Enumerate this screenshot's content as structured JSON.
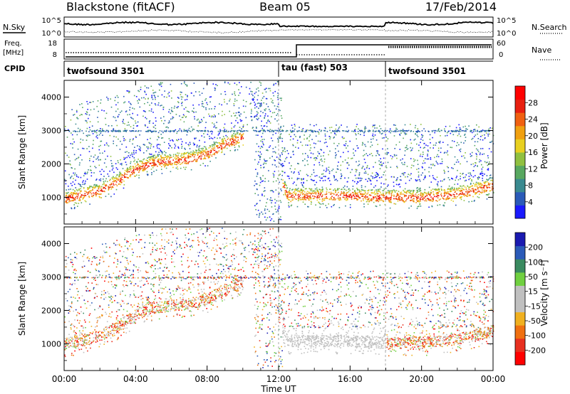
{
  "header": {
    "radar": "Blackstone (fitACF)",
    "beam": "Beam 05",
    "date": "17/Feb/2014"
  },
  "panels": {
    "nsky": {
      "left_label": "N.Sky",
      "right_label": "N.Search",
      "left_ticks": [
        "10^5",
        "10^0"
      ],
      "right_ticks": [
        "10^5",
        "10^0"
      ]
    },
    "freq": {
      "left_label_line1": "Freq.",
      "left_label_line2": "[MHz]",
      "right_label": "Nave",
      "left_ticks": [
        "18",
        "8"
      ],
      "right_ticks": [
        "60",
        "0"
      ]
    },
    "cpid": {
      "label": "CPID",
      "segments": [
        {
          "name": "twofsound 3501",
          "start_h": 0,
          "end_h": 12
        },
        {
          "name": "tau (fast) 503",
          "start_h": 12,
          "end_h": 18
        },
        {
          "name": "twofsound 3501",
          "start_h": 18,
          "end_h": 24
        }
      ]
    }
  },
  "chart_data": [
    {
      "type": "heatmap",
      "name": "power",
      "ylabel": "Slant Range [km]",
      "xlim": [
        0,
        24
      ],
      "ylim": [
        200,
        4500
      ],
      "yticks": [
        "1000",
        "2000",
        "3000",
        "4000"
      ],
      "yticks_values": [
        1000,
        2000,
        3000,
        4000
      ],
      "colorbar": {
        "label": "Power [dB]",
        "ticks": [
          "4",
          "8",
          "12",
          "16",
          "20",
          "24",
          "28"
        ],
        "ticks_values": [
          4,
          8,
          12,
          16,
          20,
          24,
          28
        ],
        "range": [
          0,
          32
        ],
        "colors": [
          "#1a1aff",
          "#2a5ab8",
          "#3a8a90",
          "#58a860",
          "#90c040",
          "#e8d020",
          "#f0a010",
          "#f06010",
          "#e82010",
          "#ff0000"
        ]
      },
      "features": [
        {
          "desc": "main scatter band",
          "points": [
            [
              0,
              950
            ],
            [
              2,
              1200
            ],
            [
              3,
              1500
            ],
            [
              4,
              1850
            ],
            [
              5,
              2050
            ],
            [
              7,
              2150
            ],
            [
              8,
              2300
            ],
            [
              9,
              2600
            ],
            [
              10,
              2800
            ]
          ]
        },
        {
          "desc": "post-12 band",
          "points": [
            [
              12.2,
              1400
            ],
            [
              12.5,
              1050
            ],
            [
              14,
              1050
            ],
            [
              16,
              1050
            ],
            [
              18,
              1000
            ],
            [
              20,
              1000
            ],
            [
              22,
              1100
            ],
            [
              24,
              1350
            ]
          ]
        }
      ]
    },
    {
      "type": "heatmap",
      "name": "velocity",
      "ylabel": "Slant Range [km]",
      "xlim": [
        0,
        24
      ],
      "ylim": [
        200,
        4500
      ],
      "yticks": [
        "1000",
        "2000",
        "3000",
        "4000"
      ],
      "yticks_values": [
        1000,
        2000,
        3000,
        4000
      ],
      "colorbar": {
        "label": "Velocity [m s⁻¹]",
        "ticks": [
          "200",
          "100",
          "50",
          "15",
          "-15",
          "-50",
          "-100",
          "-200"
        ],
        "colors": [
          "#1a1ab0",
          "#2a5ab8",
          "#3a8a60",
          "#70d040",
          "#c0c0c0",
          "#c0c0c0",
          "#f0b020",
          "#f07010",
          "#e83020",
          "#ff0000"
        ]
      }
    }
  ],
  "xaxis": {
    "label": "Time UT",
    "ticks": [
      "00:00",
      "04:00",
      "08:00",
      "12:00",
      "16:00",
      "20:00",
      "00:00"
    ],
    "ticks_values": [
      0,
      4,
      8,
      12,
      16,
      20,
      24
    ]
  }
}
